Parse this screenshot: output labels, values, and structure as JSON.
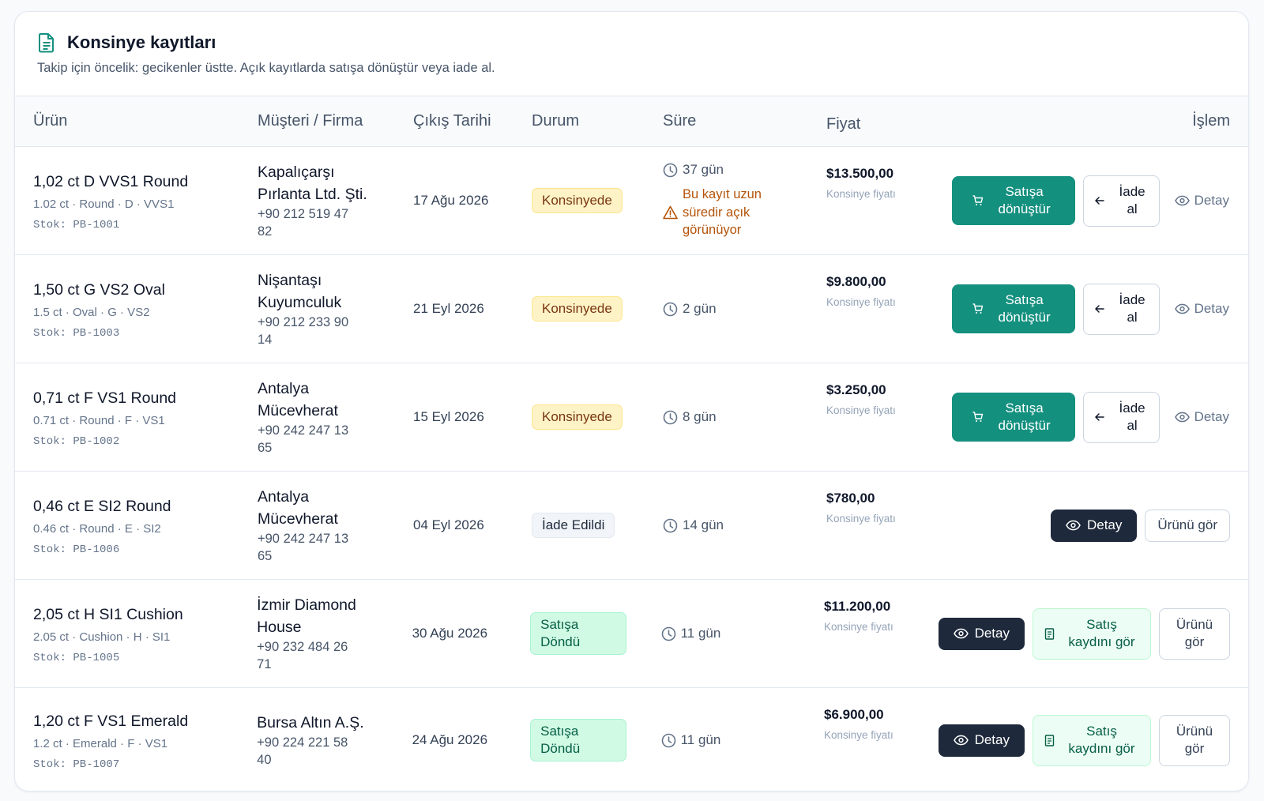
{
  "header": {
    "title": "Konsinye kayıtları",
    "subtitle": "Takip için öncelik: gecikenler üstte. Açık kayıtlarda satışa dönüştür veya iade al."
  },
  "table": {
    "columns": [
      "Ürün",
      "Müşteri / Firma",
      "Çıkış Tarihi",
      "Durum",
      "Süre",
      "Fiyat",
      "İşlem"
    ],
    "rows": [
      {
        "product": "1,02 ct D VVS1 Round",
        "specs": "1.02 ct · Round · D · VVS1",
        "stock": "Stok: PB-1001",
        "customer": "Kapalıçarşı Pırlanta Ltd. Şti.",
        "phone": "+90 212 519 47 82",
        "date": "17 Ağu 2026",
        "status": {
          "label": "Konsinyede",
          "tone": "pending"
        },
        "duration": "37 gün",
        "warning": "Bu kayıt uzun süredir açık görünüyor",
        "price": "$13.500,00",
        "price_note": "Konsinye fiyatı",
        "actions": [
          {
            "label": "Satışa dönüştür",
            "variant": "convert"
          },
          {
            "label": "İade al",
            "variant": "return"
          },
          {
            "label": "Detay",
            "variant": "link"
          }
        ]
      },
      {
        "product": "1,50 ct G VS2 Oval",
        "specs": "1.5 ct · Oval · G · VS2",
        "stock": "Stok: PB-1003",
        "customer": "Nişantaşı Kuyumculuk",
        "phone": "+90 212 233 90 14",
        "date": "21 Eyl 2026",
        "status": {
          "label": "Konsinyede",
          "tone": "pending"
        },
        "duration": "2 gün",
        "price": "$9.800,00",
        "price_note": "Konsinye fiyatı",
        "actions": [
          {
            "label": "Satışa dönüştür",
            "variant": "convert"
          },
          {
            "label": "İade al",
            "variant": "return"
          },
          {
            "label": "Detay",
            "variant": "link"
          }
        ]
      },
      {
        "product": "0,71 ct F VS1 Round",
        "specs": "0.71 ct · Round · F · VS1",
        "stock": "Stok: PB-1002",
        "customer": "Antalya Mücevherat",
        "phone": "+90 242 247 13 65",
        "date": "15 Eyl 2026",
        "status": {
          "label": "Konsinyede",
          "tone": "pending"
        },
        "duration": "8 gün",
        "price": "$3.250,00",
        "price_note": "Konsinye fiyatı",
        "actions": [
          {
            "label": "Satışa dönüştür",
            "variant": "convert"
          },
          {
            "label": "İade al",
            "variant": "return"
          },
          {
            "label": "Detay",
            "variant": "link"
          }
        ]
      },
      {
        "product": "0,46 ct E SI2 Round",
        "specs": "0.46 ct · Round · E · SI2",
        "stock": "Stok: PB-1006",
        "customer": "Antalya Mücevherat",
        "phone": "+90 242 247 13 65",
        "date": "04 Eyl 2026",
        "status": {
          "label": "İade Edildi",
          "tone": "returned"
        },
        "duration": "14 gün",
        "price": "$780,00",
        "price_note": "Konsinye fiyatı",
        "actions": [
          {
            "label": "Detay",
            "variant": "detail"
          },
          {
            "label": "Ürünü gör",
            "variant": "outline"
          }
        ]
      },
      {
        "product": "2,05 ct H SI1 Cushion",
        "specs": "2.05 ct · Cushion · H · SI1",
        "stock": "Stok: PB-1005",
        "customer": "İzmir Diamond House",
        "phone": "+90 232 484 26 71",
        "date": "30 Ağu 2026",
        "status": {
          "label": "Satışa Döndü",
          "tone": "sold"
        },
        "duration": "11 gün",
        "price": "$11.200,00",
        "price_note": "Konsinye fiyatı",
        "actions": [
          {
            "label": "Detay",
            "variant": "detail"
          },
          {
            "label": "Satış kaydını gör",
            "variant": "sale"
          },
          {
            "label": "Ürünü gör",
            "variant": "outline"
          }
        ]
      },
      {
        "product": "1,20 ct F VS1 Emerald",
        "specs": "1.2 ct · Emerald · F · VS1",
        "stock": "Stok: PB-1007",
        "customer": "Bursa Altın A.Ş.",
        "phone": "+90 224 221 58 40",
        "date": "24 Ağu 2026",
        "status": {
          "label": "Satışa Döndü",
          "tone": "sold"
        },
        "duration": "11 gün",
        "price": "$6.900,00",
        "price_note": "Konsinye fiyatı",
        "actions": [
          {
            "label": "Detay",
            "variant": "detail"
          },
          {
            "label": "Satış kaydını gör",
            "variant": "sale"
          },
          {
            "label": "Ürünü gör",
            "variant": "outline"
          }
        ]
      }
    ]
  }
}
